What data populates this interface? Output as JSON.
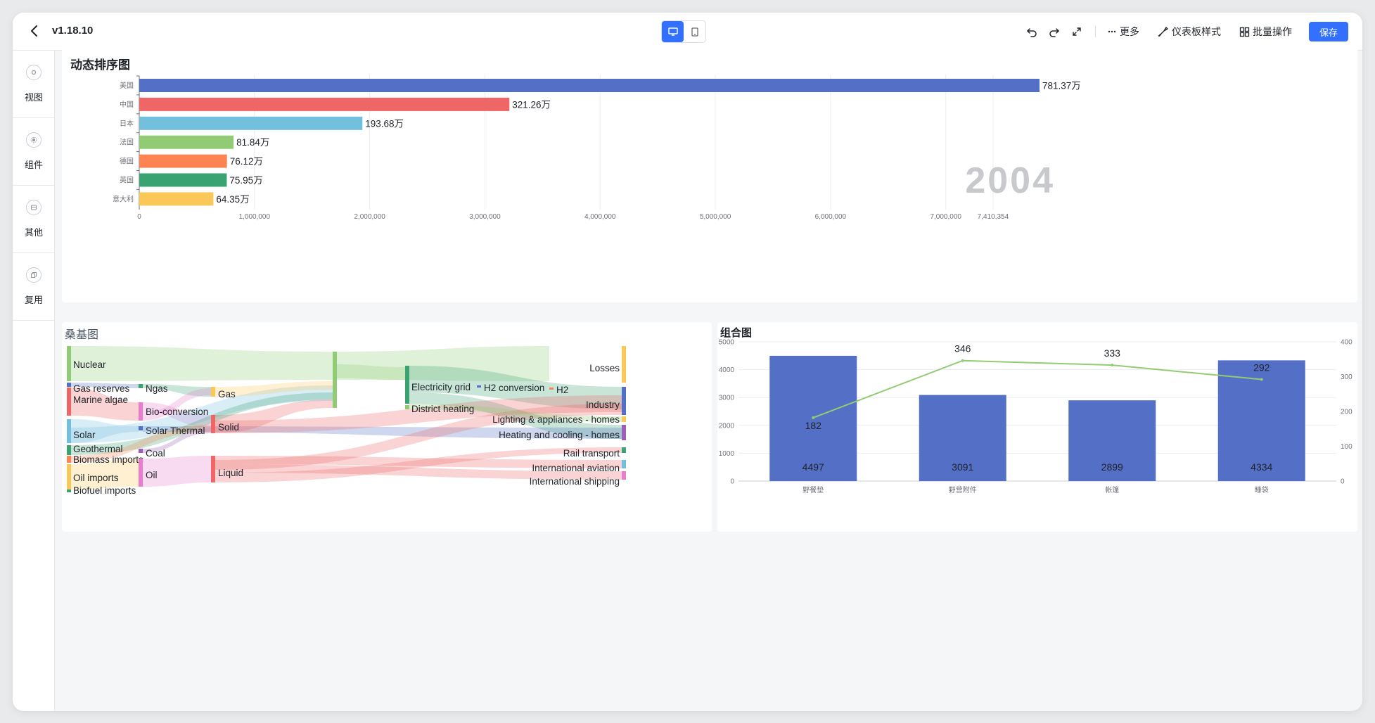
{
  "header": {
    "version": "v1.18.10",
    "more_label": "更多",
    "dashboard_style_label": "仪表板样式",
    "batch_label": "批量操作",
    "save_label": "保存"
  },
  "sidebar": {
    "items": [
      {
        "label": "视图",
        "icon": "view-icon"
      },
      {
        "label": "组件",
        "icon": "component-icon"
      },
      {
        "label": "其他",
        "icon": "other-icon"
      },
      {
        "label": "复用",
        "icon": "reuse-icon"
      }
    ]
  },
  "bar_race": {
    "title": "动态排序图",
    "year_label": "2004",
    "chart_data": {
      "type": "bar",
      "orientation": "horizontal",
      "categories": [
        "美国",
        "中国",
        "日本",
        "法国",
        "德国",
        "英国",
        "意大利"
      ],
      "values": [
        7813700,
        3212600,
        1936800,
        818400,
        761200,
        759500,
        643500
      ],
      "value_labels": [
        "781.37万",
        "321.26万",
        "193.68万",
        "81.84万",
        "76.12万",
        "75.95万",
        "64.35万"
      ],
      "colors": [
        "#5470c6",
        "#ee6666",
        "#73c0de",
        "#91cc75",
        "#fc8452",
        "#3ba272",
        "#fac858"
      ],
      "x_ticks": [
        "0",
        "1,000,000",
        "2,000,000",
        "3,000,000",
        "4,000,000",
        "5,000,000",
        "6,000,000",
        "7,000,000",
        "7,410,354"
      ],
      "xlim": [
        0,
        7813700
      ]
    }
  },
  "sankey": {
    "title": "桑基图",
    "chart_data": {
      "type": "sankey",
      "nodes": [
        "Nuclear",
        "Gas reserves",
        "Marine algae",
        "Solar",
        "Geothermal",
        "Biomass imports",
        "Oil imports",
        "Biofuel imports",
        "Ngas",
        "Bio-conversion",
        "Solar Thermal",
        "Coal",
        "Oil",
        "Gas",
        "Solid",
        "Liquid",
        "Electricity grid",
        "District heating",
        "H2 conversion",
        "H2",
        "Losses",
        "Industry",
        "Lighting & appliances - homes",
        "Heating and cooling - homes",
        "Rail transport",
        "International aviation",
        "International shipping"
      ]
    }
  },
  "combo": {
    "title": "组合图",
    "chart_data": {
      "type": "bar+line",
      "categories": [
        "野餐垫",
        "野营附件",
        "帐篷",
        "睡袋"
      ],
      "series": [
        {
          "kind": "bar",
          "values": [
            4497,
            3091,
            2899,
            4334
          ],
          "color": "#5470c6"
        },
        {
          "kind": "line",
          "values": [
            182,
            346,
            333,
            292
          ],
          "color": "#91cc75"
        }
      ],
      "y_left_ticks": [
        "0",
        "1000",
        "2000",
        "3000",
        "4000",
        "5000"
      ],
      "y_right_ticks": [
        "0",
        "100",
        "200",
        "300",
        "400"
      ],
      "ylim_left": [
        0,
        5000
      ],
      "ylim_right": [
        0,
        400
      ]
    }
  }
}
